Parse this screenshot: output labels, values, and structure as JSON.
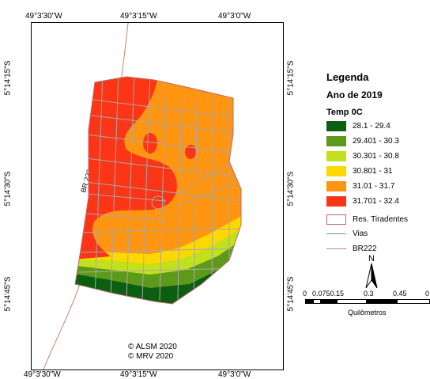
{
  "graticule": {
    "top": [
      "49°3'30\"W",
      "49°3'15\"W",
      "49°3'0\"W"
    ],
    "bottom": [
      "49°3'30\"W",
      "49°3'15\"W",
      "49°3'0\"W"
    ],
    "left": [
      "5°14'15\"S",
      "5°14'30\"S",
      "5°14'45\"S"
    ],
    "right": [
      "5°14'15\"S",
      "5°14'30\"S",
      "5°14'45\"S"
    ]
  },
  "map": {
    "road_label": "BR 222",
    "copyright_lines": [
      "© ALSM 2020",
      "© MRV 2020"
    ]
  },
  "legend": {
    "title": "Legenda",
    "subtitle": "Ano de 2019",
    "variable": "Temp 0C",
    "classes": [
      {
        "label": "28.1 - 29.4",
        "color": "#0b5e12"
      },
      {
        "label": "29.401 - 30.3",
        "color": "#5e9a1a"
      },
      {
        "label": "30.301 - 30.8",
        "color": "#c3e01c"
      },
      {
        "label": "30.801 - 31",
        "color": "#ffd800"
      },
      {
        "label": "31.01 - 31.7",
        "color": "#ff9510"
      },
      {
        "label": "31.701 - 32.4",
        "color": "#fb3516"
      }
    ],
    "boundary_label": "Res. Tiradentes",
    "boundary_color": "#c06a6a",
    "roads_label": "Vias",
    "roads_color": "#8a8a8a",
    "br_label": "BR222",
    "br_color": "#c9826e"
  },
  "north_arrow": {
    "label": "N"
  },
  "scale_bar": {
    "ticks": [
      "0",
      "0.0750.15",
      "0.3",
      "0.45",
      "0"
    ],
    "unit": "Quilômetros"
  }
}
